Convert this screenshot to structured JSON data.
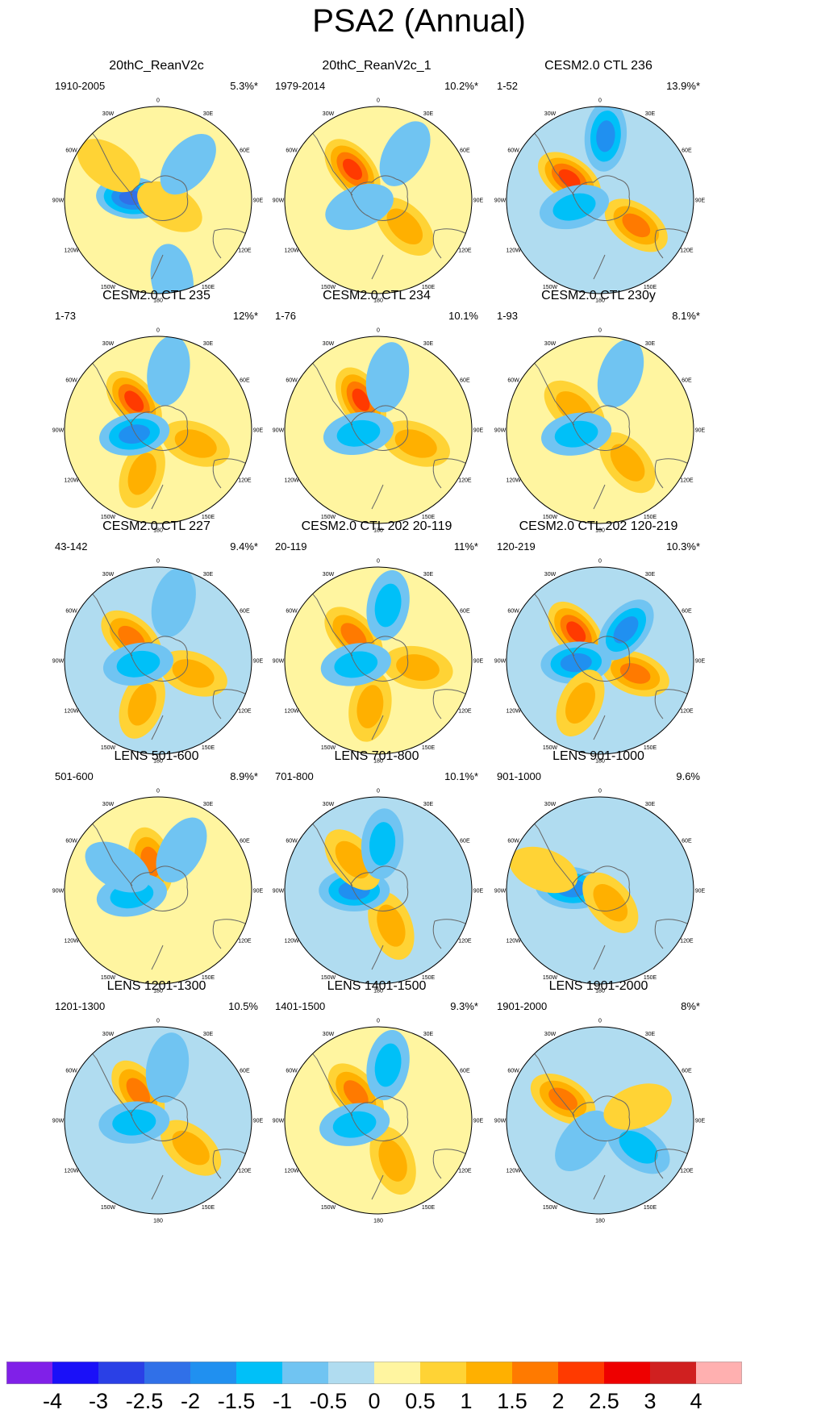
{
  "title": "PSA2 (Annual)",
  "chart_data": {
    "type": "polar-stereographic contour maps (Southern Hemisphere)",
    "title": "PSA2 (Annual)",
    "lon_labels": [
      "0",
      "30E",
      "60E",
      "90E",
      "120E",
      "150E",
      "180",
      "150W",
      "120W",
      "90W",
      "60W",
      "30W"
    ],
    "colorbar": {
      "labels": [
        "-4",
        "-3",
        "-2.5",
        "-2",
        "-1.5",
        "-1",
        "-0.5",
        "0",
        "0.5",
        "1",
        "1.5",
        "2",
        "2.5",
        "3",
        "4"
      ],
      "colors": [
        "#8020e8",
        "#1a10f8",
        "#2a40e6",
        "#3070e8",
        "#2090f0",
        "#00c0f8",
        "#70c4f2",
        "#b0dcf0",
        "#fff5a0",
        "#ffd335",
        "#ffb000",
        "#ff7a00",
        "#ff3a00",
        "#ee0000",
        "#d02020",
        "#ffb0b0"
      ]
    },
    "panels": [
      {
        "title": "20thC_ReanV2c",
        "period": "1910-2005",
        "variance": "5.3%*",
        "bg": 0,
        "anomalies": [
          {
            "lon": -95,
            "lat": -70,
            "v": -2
          },
          {
            "lon": -125,
            "lat": -45,
            "v": 0.5
          },
          {
            "lon": 60,
            "lat": -80,
            "v": 0.5
          },
          {
            "lon": 140,
            "lat": -55,
            "v": -0.5
          },
          {
            "lon": 10,
            "lat": -30,
            "v": -0.5
          }
        ]
      },
      {
        "title": "20thC_ReanV2c_1",
        "period": "1979-2014",
        "variance": "10.2%*",
        "bg": 0,
        "anomalies": [
          {
            "lon": -140,
            "lat": -60,
            "v": 2
          },
          {
            "lon": 45,
            "lat": -62,
            "v": 1
          },
          {
            "lon": -70,
            "lat": -75,
            "v": -0.5
          },
          {
            "lon": 150,
            "lat": -50,
            "v": -0.5
          }
        ]
      },
      {
        "title": "CESM2.0 CTL 236",
        "period": "1-52",
        "variance": "13.9%*",
        "bg": -0.5,
        "anomalies": [
          {
            "lon": 55,
            "lat": -57,
            "v": 1.5
          },
          {
            "lon": -125,
            "lat": -62,
            "v": 2
          },
          {
            "lon": -75,
            "lat": -70,
            "v": -1
          },
          {
            "lon": 175,
            "lat": -42,
            "v": -1.5
          }
        ]
      },
      {
        "title": "CESM2.0 CTL 235",
        "period": "1-73",
        "variance": "12%*",
        "bg": 0,
        "anomalies": [
          {
            "lon": -140,
            "lat": -62,
            "v": 2
          },
          {
            "lon": 70,
            "lat": -60,
            "v": 1
          },
          {
            "lon": -20,
            "lat": -55,
            "v": 1
          },
          {
            "lon": -80,
            "lat": -72,
            "v": -1.5
          },
          {
            "lon": 170,
            "lat": -45,
            "v": -0.5
          }
        ]
      },
      {
        "title": "CESM2.0 CTL 234",
        "period": "1-76",
        "variance": "10.1%",
        "bg": 0,
        "anomalies": [
          {
            "lon": -150,
            "lat": -64,
            "v": 2
          },
          {
            "lon": 70,
            "lat": -60,
            "v": 1
          },
          {
            "lon": -80,
            "lat": -75,
            "v": -1
          },
          {
            "lon": 170,
            "lat": -50,
            "v": -0.5
          }
        ]
      },
      {
        "title": "CESM2.0 CTL 230y",
        "period": "1-93",
        "variance": "8.1%*",
        "bg": 0,
        "anomalies": [
          {
            "lon": 40,
            "lat": -58,
            "v": 1
          },
          {
            "lon": -130,
            "lat": -65,
            "v": 1
          },
          {
            "lon": -80,
            "lat": -72,
            "v": -1
          },
          {
            "lon": 160,
            "lat": -45,
            "v": -0.5
          }
        ]
      },
      {
        "title": "CESM2.0 CTL 227",
        "period": "43-142",
        "variance": "9.4%*",
        "bg": -0.5,
        "anomalies": [
          {
            "lon": -130,
            "lat": -64,
            "v": 1.5
          },
          {
            "lon": 70,
            "lat": -62,
            "v": 1
          },
          {
            "lon": -20,
            "lat": -55,
            "v": 1
          },
          {
            "lon": -80,
            "lat": -75,
            "v": -1
          },
          {
            "lon": 165,
            "lat": -45,
            "v": -0.5
          }
        ]
      },
      {
        "title": "CESM2.0 CTL 202 20-119",
        "period": "20-119",
        "variance": "11%*",
        "bg": 0,
        "anomalies": [
          {
            "lon": -135,
            "lat": -64,
            "v": 1.5
          },
          {
            "lon": 80,
            "lat": -60,
            "v": 1
          },
          {
            "lon": -10,
            "lat": -55,
            "v": 1
          },
          {
            "lon": -80,
            "lat": -73,
            "v": -1
          },
          {
            "lon": 170,
            "lat": -48,
            "v": -1
          }
        ]
      },
      {
        "title": "CESM2.0 CTL 202 120-219",
        "period": "120-219",
        "variance": "10.3%*",
        "bg": -0.5,
        "anomalies": [
          {
            "lon": -140,
            "lat": -62,
            "v": 2
          },
          {
            "lon": 70,
            "lat": -62,
            "v": 1.5
          },
          {
            "lon": -85,
            "lat": -72,
            "v": -1.5
          },
          {
            "lon": 140,
            "lat": -60,
            "v": -1.5
          },
          {
            "lon": -25,
            "lat": -55,
            "v": 1
          }
        ]
      },
      {
        "title": "LENS 501-600",
        "period": "501-600",
        "variance": "8.9%*",
        "bg": 0,
        "anomalies": [
          {
            "lon": -165,
            "lat": -68,
            "v": 1.5
          },
          {
            "lon": -80,
            "lat": -70,
            "v": -1
          },
          {
            "lon": 150,
            "lat": -55,
            "v": -0.5
          },
          {
            "lon": -120,
            "lat": -55,
            "v": -0.5
          }
        ]
      },
      {
        "title": "LENS 701-800",
        "period": "701-800",
        "variance": "10.1%*",
        "bg": -0.5,
        "anomalies": [
          {
            "lon": 20,
            "lat": -62,
            "v": 1
          },
          {
            "lon": -90,
            "lat": -72,
            "v": -1.5
          },
          {
            "lon": -140,
            "lat": -60,
            "v": 1
          },
          {
            "lon": 175,
            "lat": -55,
            "v": -1
          }
        ]
      },
      {
        "title": "LENS 901-1000",
        "period": "901-1000",
        "variance": "9.6%",
        "bg": -0.5,
        "anomalies": [
          {
            "lon": -95,
            "lat": -68,
            "v": -1.5
          },
          {
            "lon": 40,
            "lat": -78,
            "v": 1
          },
          {
            "lon": -110,
            "lat": -45,
            "v": 0.5
          }
        ]
      },
      {
        "title": "LENS 1201-1300",
        "period": "1201-1300",
        "variance": "10.5%",
        "bg": -0.5,
        "anomalies": [
          {
            "lon": -145,
            "lat": -64,
            "v": 1.5
          },
          {
            "lon": 50,
            "lat": -58,
            "v": 1
          },
          {
            "lon": -85,
            "lat": -72,
            "v": -1
          },
          {
            "lon": 170,
            "lat": -50,
            "v": -0.5
          }
        ]
      },
      {
        "title": "LENS 1401-1500",
        "period": "1401-1500",
        "variance": "9.3%*",
        "bg": 0,
        "anomalies": [
          {
            "lon": -140,
            "lat": -64,
            "v": 1.5
          },
          {
            "lon": 20,
            "lat": -58,
            "v": 1
          },
          {
            "lon": -80,
            "lat": -72,
            "v": -1
          },
          {
            "lon": 170,
            "lat": -48,
            "v": -1
          }
        ]
      },
      {
        "title": "LENS 1901-2000",
        "period": "1901-2000",
        "variance": "8%*",
        "bg": -0.5,
        "anomalies": [
          {
            "lon": -120,
            "lat": -58,
            "v": 1.5
          },
          {
            "lon": 55,
            "lat": -55,
            "v": -1
          },
          {
            "lon": -40,
            "lat": -70,
            "v": -0.5
          },
          {
            "lon": 110,
            "lat": -60,
            "v": 0.5
          }
        ]
      }
    ]
  }
}
